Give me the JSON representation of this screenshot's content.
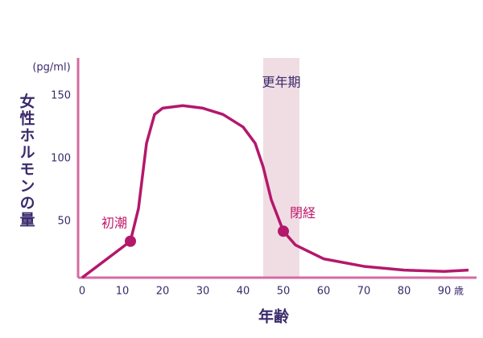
{
  "chart_data": {
    "type": "line",
    "x": [
      0,
      12,
      14,
      16,
      18,
      20,
      25,
      30,
      35,
      40,
      43,
      45,
      47,
      50,
      53,
      60,
      70,
      80,
      90,
      96
    ],
    "values": [
      5,
      34,
      60,
      112,
      135,
      140,
      142,
      140,
      135,
      125,
      112,
      93,
      67,
      42,
      31,
      20,
      14,
      11,
      10,
      11
    ],
    "color": "#b3186b",
    "xlim": [
      -1,
      98
    ],
    "ylim": [
      5,
      180
    ],
    "xticks": [
      0,
      10,
      20,
      30,
      40,
      50,
      60,
      70,
      80,
      90
    ],
    "yticks": [
      50,
      100,
      150
    ],
    "x_label": "年齢",
    "x_unit": "歳",
    "y_label": "女性ホルモンの量",
    "y_unit": "(pg/ml)",
    "shaded_region": {
      "label": "更年期",
      "x": [
        45,
        54
      ],
      "color": "#f0dde4"
    },
    "annotations": [
      {
        "text": "初潮",
        "x": 12,
        "y": 34
      },
      {
        "text": "閉経",
        "x": 50,
        "y": 42
      }
    ]
  }
}
